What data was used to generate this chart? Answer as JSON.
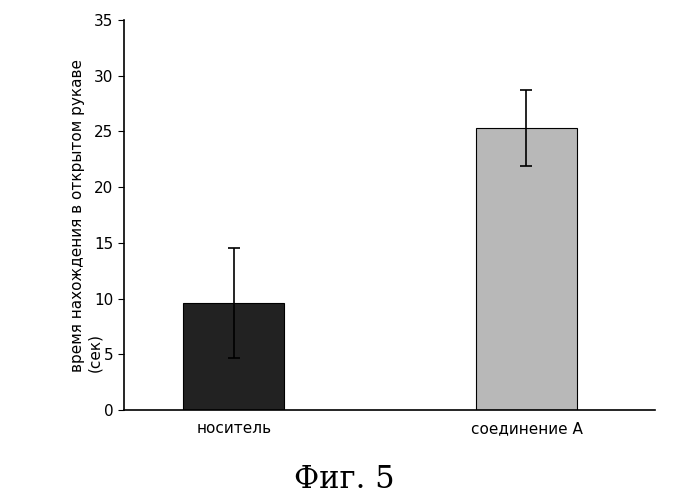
{
  "categories": [
    "носитель",
    "соединение A"
  ],
  "values": [
    9.6,
    25.3
  ],
  "errors": [
    4.9,
    3.4
  ],
  "bar_colors": [
    "#222222",
    "#b8b8b8"
  ],
  "bar_width": 0.55,
  "bar_positions": [
    1.0,
    2.6
  ],
  "xlim": [
    0.4,
    3.3
  ],
  "ylim": [
    0,
    35
  ],
  "yticks": [
    0,
    5,
    10,
    15,
    20,
    25,
    30,
    35
  ],
  "ylabel_line1": "время нахождения в открытом рукаве",
  "ylabel_line2": "(сек)",
  "figure_title": "Фиг. 5",
  "background_color": "#ffffff",
  "error_cap_size": 4,
  "error_linewidth": 1.2,
  "title_fontsize": 22,
  "tick_fontsize": 11,
  "label_fontsize": 11,
  "xlabel_fontsize": 11,
  "spine_linewidth": 1.2
}
